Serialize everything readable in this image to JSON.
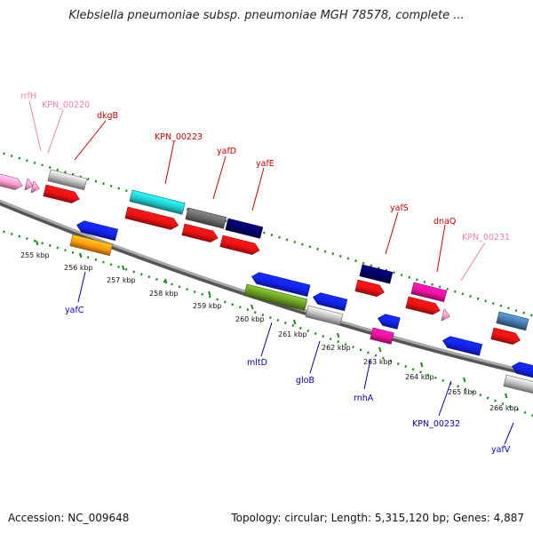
{
  "title": "Klebsiella pneumoniae subsp. pneumoniae MGH 78578, complete ...",
  "footer": {
    "accession": "Accession: NC_009648",
    "stats": "Topology: circular; Length: 5,315,120 bp; Genes: 4,887"
  },
  "colors": {
    "backbone": "#888888",
    "tick": "#1a8a1a",
    "forward_label": "#cc0000",
    "reverse_label": "#0000aa",
    "pseudo_label": "#f080b0"
  },
  "kbp_ticks": [
    "255 kbp",
    "256 kbp",
    "257 kbp",
    "258 kbp",
    "259 kbp",
    "260 kbp",
    "261 kbp",
    "262 kbp",
    "263 kbp",
    "264 kbp",
    "265 kbp",
    "266 kbp"
  ],
  "gene_labels": [
    {
      "text": "rrfH",
      "group": "pseudo"
    },
    {
      "text": "KPN_00220",
      "group": "pseudo"
    },
    {
      "text": "dkgB",
      "group": "forward"
    },
    {
      "text": "KPN_00223",
      "group": "forward"
    },
    {
      "text": "yafD",
      "group": "forward"
    },
    {
      "text": "yafE",
      "group": "forward"
    },
    {
      "text": "yafS",
      "group": "forward"
    },
    {
      "text": "dnaQ",
      "group": "forward"
    },
    {
      "text": "KPN_00231",
      "group": "pseudo"
    },
    {
      "text": "yafC",
      "group": "reverse"
    },
    {
      "text": "mltD",
      "group": "reverse"
    },
    {
      "text": "gloB",
      "group": "reverse"
    },
    {
      "text": "rnhA",
      "group": "reverse"
    },
    {
      "text": "KPN_00232",
      "group": "reverse"
    },
    {
      "text": "yafV",
      "group": "reverse"
    }
  ],
  "feature_colors": {
    "red": "#ee1111",
    "grey": "#bbbbbb",
    "cyan": "#22cccc",
    "darkgrey": "#666666",
    "navy": "#000066",
    "blue": "#1122ee",
    "orange": "#ff9911",
    "olive": "#669922",
    "magenta": "#ee1199",
    "pink": "#ff99cc",
    "steel": "#4477aa"
  }
}
